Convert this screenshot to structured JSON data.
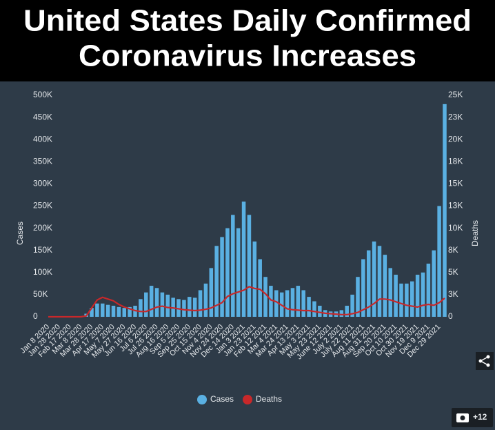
{
  "chart_data": {
    "type": "bar",
    "title": [
      "United States Daily Confirmed",
      "Coronavirus Increases"
    ],
    "y_label": "Cases",
    "y2_label": "Deaths",
    "categories": [
      "Jan 8 2020",
      null,
      "Jan 28 2020",
      null,
      "Feb 17 2020",
      null,
      "Mar 8 2020",
      null,
      "Mar 28 2020",
      null,
      "Apr 17 2020",
      null,
      "May 7 2020",
      null,
      "May 27 2020",
      null,
      "Jun 16 2020",
      null,
      "Jul 6 2020",
      null,
      "Jul 26 2020",
      null,
      "Aug 16 2020",
      null,
      "Sep 5 2020",
      null,
      "Sep 25 2020",
      null,
      "Oct 15 2020",
      null,
      "Nov 4 2020",
      null,
      "Nov 24 2020",
      null,
      "Dec 14 2020",
      null,
      "Jan 3 2021",
      null,
      "Jan 23 2021",
      null,
      "Feb 12 2021",
      null,
      "Mar 4 2021",
      null,
      "Mar 24 2021",
      null,
      "Apr 13 2021",
      null,
      "May 3 2021",
      null,
      "May 23 2021",
      null,
      "June 12 2021",
      null,
      "July 2 2021",
      null,
      "July 22 2021",
      null,
      "Aug 11 2021",
      null,
      "Aug 31 2021",
      null,
      "Sep 20 2021",
      null,
      "Oct 10 2021",
      null,
      "Oct 30 2021",
      null,
      "Nov 19 2021",
      null,
      "Dec 9 2021",
      null,
      "Dec 29 2021",
      null
    ],
    "series": [
      {
        "name": "Cases",
        "type": "bar",
        "color": "#5ab0e2",
        "values": [
          0,
          0,
          0,
          0,
          0,
          0,
          500,
          7000,
          20000,
          30000,
          30000,
          27000,
          25000,
          22000,
          20000,
          22000,
          25000,
          40000,
          55000,
          70000,
          65000,
          55000,
          50000,
          43000,
          40000,
          38000,
          45000,
          43000,
          60000,
          75000,
          110000,
          160000,
          180000,
          200000,
          230000,
          200000,
          260000,
          230000,
          170000,
          130000,
          90000,
          70000,
          60000,
          55000,
          60000,
          65000,
          70000,
          60000,
          45000,
          35000,
          25000,
          15000,
          12000,
          12000,
          15000,
          25000,
          50000,
          90000,
          130000,
          150000,
          170000,
          160000,
          140000,
          110000,
          95000,
          75000,
          75000,
          80000,
          95000,
          100000,
          120000,
          150000,
          250000,
          480000
        ]
      },
      {
        "name": "Deaths",
        "type": "line",
        "axis": "y2",
        "color": "#c8282a",
        "values": [
          0,
          0,
          0,
          0,
          0,
          0,
          0,
          100,
          1000,
          1900,
          2200,
          2000,
          1800,
          1400,
          1100,
          900,
          700,
          600,
          600,
          850,
          1100,
          1200,
          1050,
          1000,
          900,
          800,
          750,
          700,
          750,
          850,
          1000,
          1300,
          1600,
          2300,
          2600,
          2800,
          3000,
          3400,
          3200,
          3100,
          2600,
          1900,
          1700,
          1300,
          900,
          800,
          750,
          700,
          700,
          600,
          500,
          400,
          350,
          300,
          250,
          250,
          350,
          500,
          800,
          1100,
          1500,
          2000,
          2000,
          1900,
          1700,
          1500,
          1300,
          1200,
          1100,
          1300,
          1400,
          1300,
          1600,
          2100
        ]
      }
    ],
    "ylim": [
      0,
      500000
    ],
    "yticks": [
      0,
      {
        "value": 50000,
        "label": "50K"
      },
      {
        "value": 100000,
        "label": "100K"
      },
      {
        "value": 150000,
        "label": "150K"
      },
      {
        "value": 200000,
        "label": "200K"
      },
      {
        "value": 250000,
        "label": "250K"
      },
      {
        "value": 300000,
        "label": "300K"
      },
      {
        "value": 350000,
        "label": "350K"
      },
      {
        "value": 400000,
        "label": "400K"
      },
      {
        "value": 450000,
        "label": "450K"
      },
      {
        "value": 500000,
        "label": "500K"
      }
    ],
    "y2lim": [
      0,
      25000
    ],
    "y2ticks": [
      0,
      {
        "value": 2500,
        "label": "3K"
      },
      {
        "value": 5000,
        "label": "5K"
      },
      {
        "value": 7500,
        "label": "8K"
      },
      {
        "value": 10000,
        "label": "10K"
      },
      {
        "value": 12500,
        "label": "13K"
      },
      {
        "value": 15000,
        "label": "15K"
      },
      {
        "value": 17500,
        "label": "18K"
      },
      {
        "value": 20000,
        "label": "20K"
      },
      {
        "value": 22500,
        "label": "23K"
      },
      {
        "value": 25000,
        "label": "25K"
      }
    ],
    "grid": false
  },
  "ui": {
    "photo_count": "+12"
  }
}
